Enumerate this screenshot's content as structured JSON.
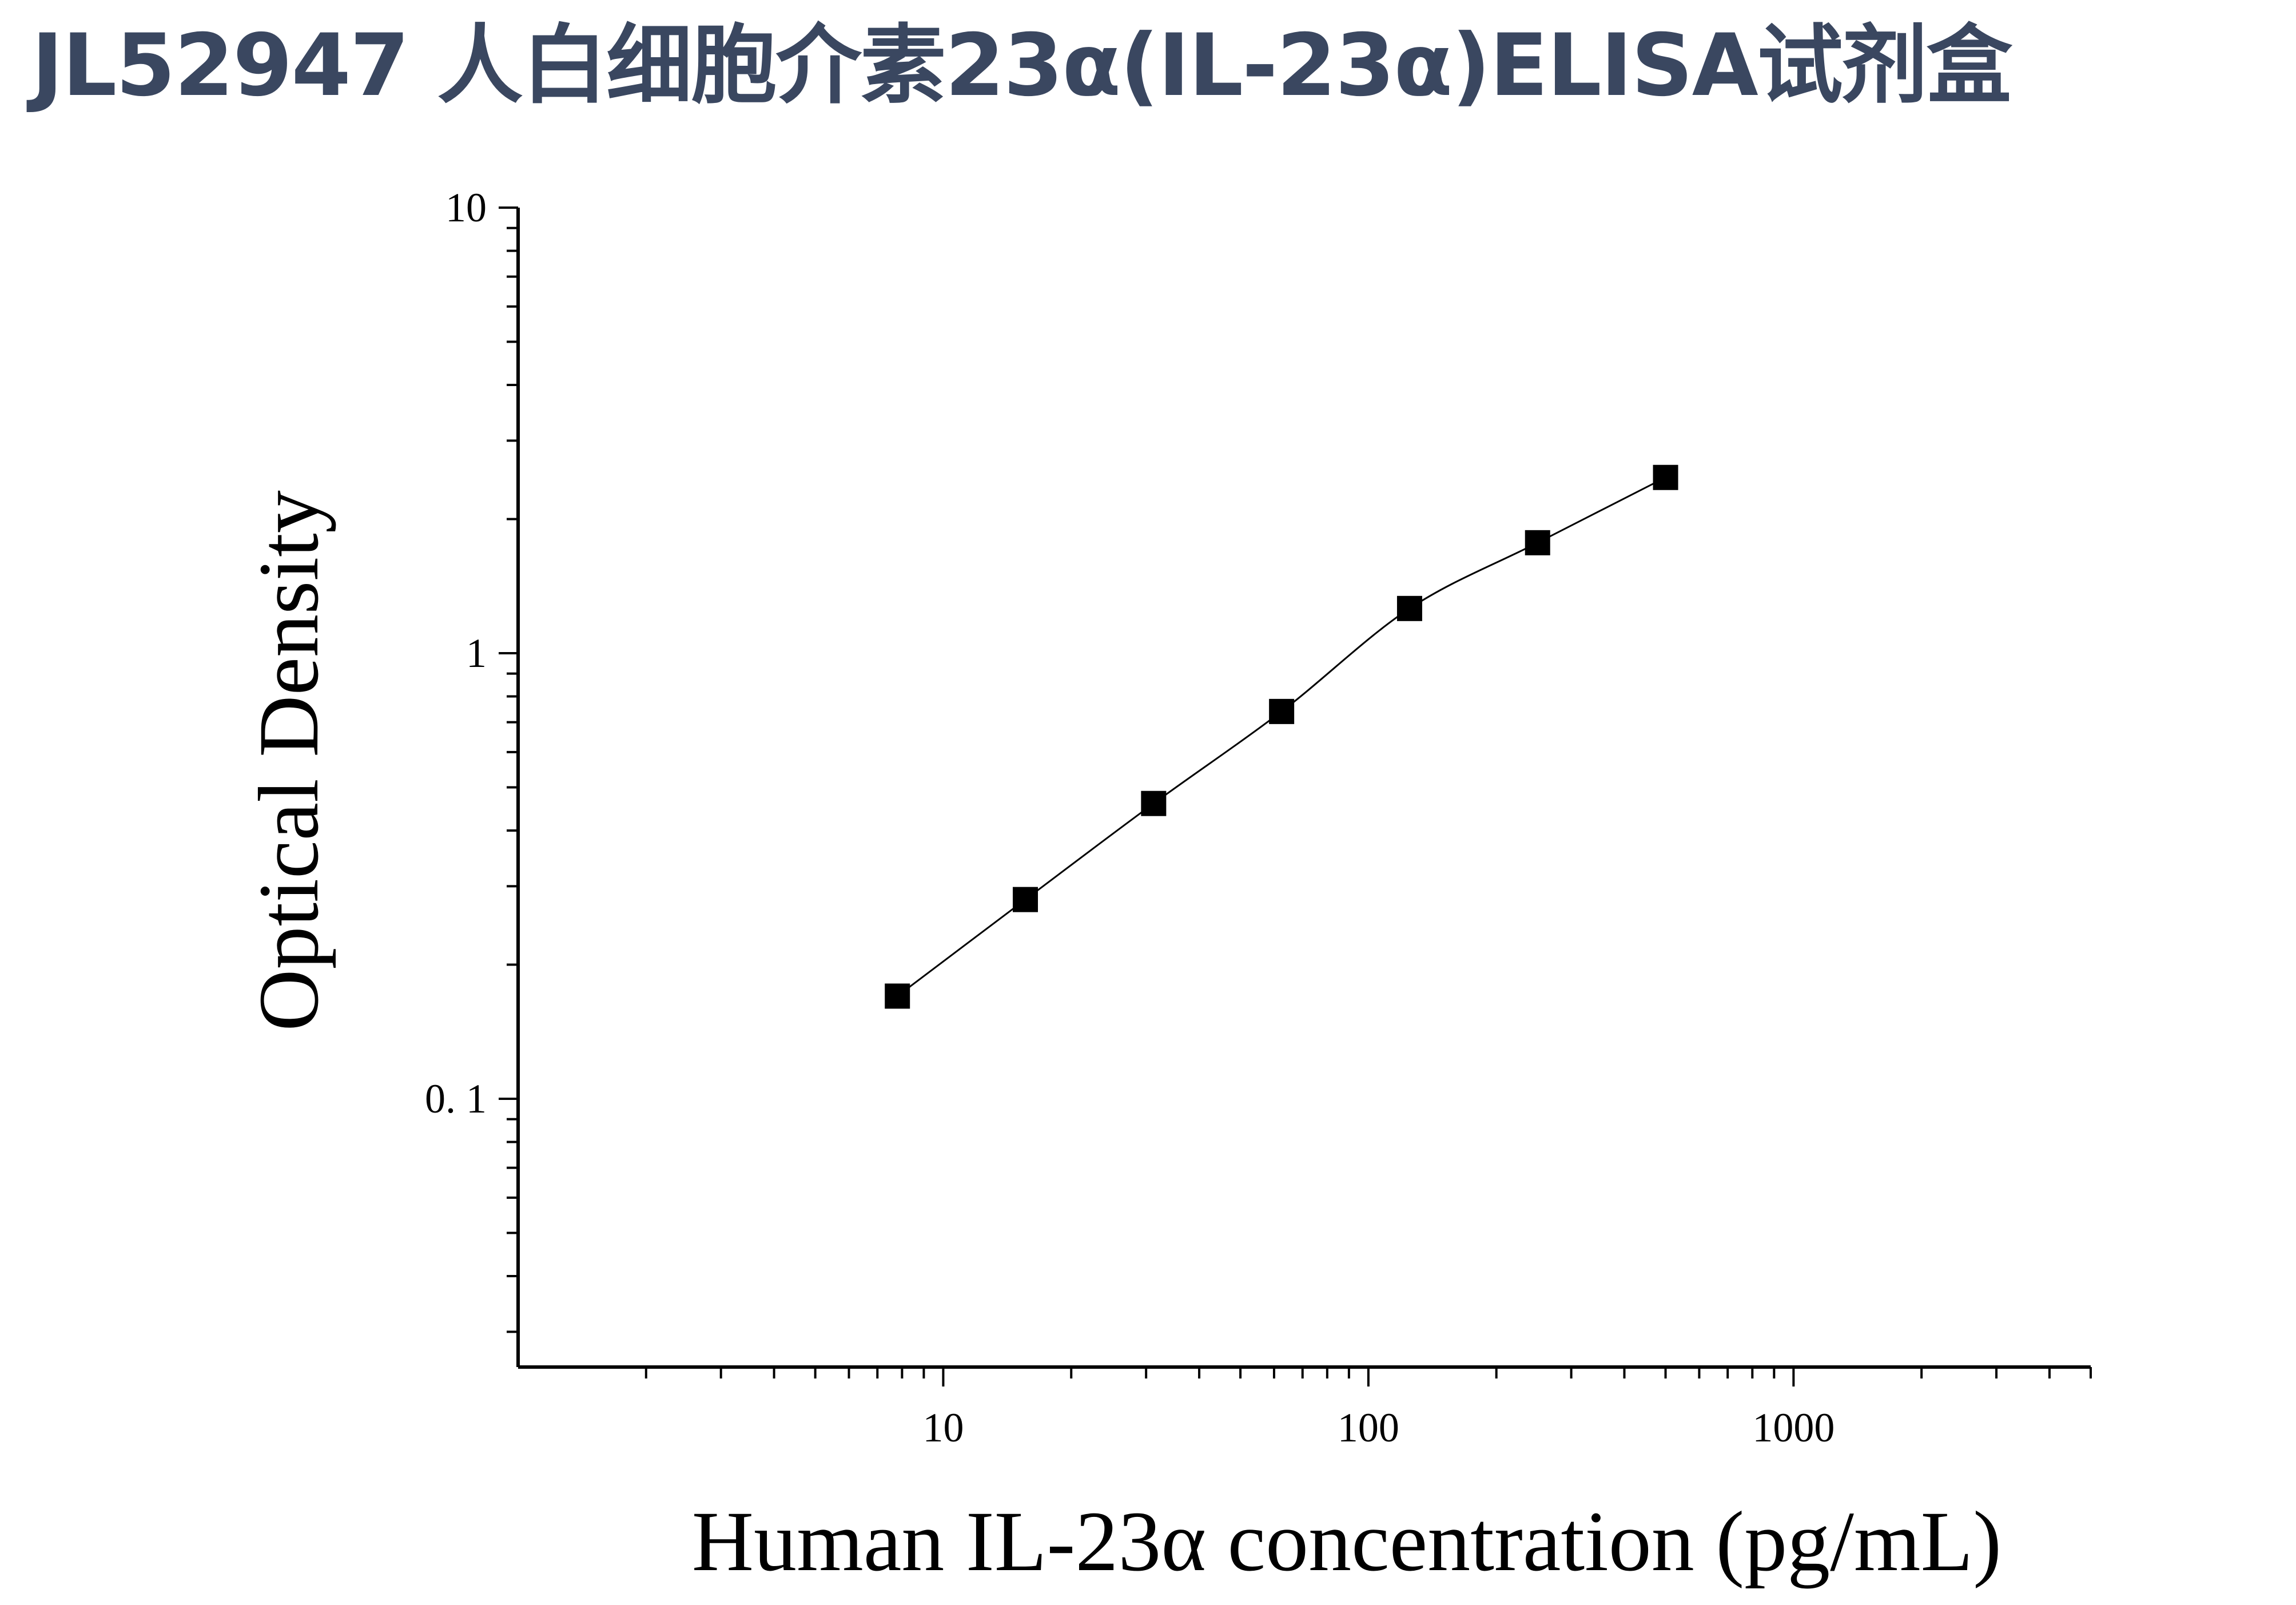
{
  "title": "JL52947 人白细胞介素23α(IL-23α)ELISA试剂盒",
  "chart_data": {
    "type": "scatter",
    "xlabel": "Human IL-23α concentration (pg/mL)",
    "ylabel": "Optical Density",
    "x_scale": "log",
    "y_scale": "log",
    "xlim": [
      1,
      5000
    ],
    "ylim": [
      0.025,
      10
    ],
    "x_ticks": [
      {
        "value": 10,
        "label": "10"
      },
      {
        "value": 100,
        "label": "100"
      },
      {
        "value": 1000,
        "label": "1000"
      }
    ],
    "y_ticks": [
      {
        "value": 0.1,
        "label": "0. 1"
      },
      {
        "value": 1,
        "label": "1"
      },
      {
        "value": 10,
        "label": "10"
      }
    ],
    "grid": false,
    "marker": "square",
    "fit_line": "smooth curve",
    "colors": {
      "title": "#3a4760",
      "series": "#000000"
    },
    "series": [
      {
        "x": [
          7.8,
          15.6,
          31.25,
          62.5,
          125,
          250,
          500
        ],
        "y": [
          0.17,
          0.28,
          0.46,
          0.74,
          1.26,
          1.77,
          2.48
        ]
      }
    ]
  }
}
